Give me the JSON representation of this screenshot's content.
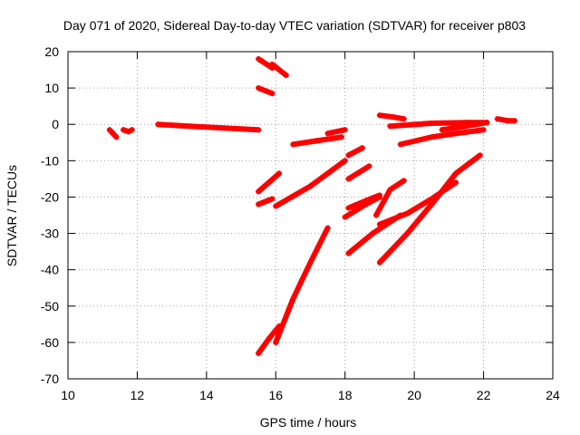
{
  "chart_data": {
    "type": "scatter",
    "title": "Day 071 of 2020, Sidereal Day-to-day VTEC variation (SDTVAR) for receiver p803",
    "xlabel": "GPS time / hours",
    "ylabel": "SDTVAR / TECUs",
    "xlim": [
      10,
      24
    ],
    "ylim": [
      -70,
      20
    ],
    "xticks": [
      "10",
      "12",
      "14",
      "16",
      "18",
      "20",
      "22",
      "24"
    ],
    "yticks": [
      "20",
      "10",
      "0",
      "-10",
      "-20",
      "-30",
      "-40",
      "-50",
      "-60",
      "-70"
    ],
    "xtick_values": [
      10,
      12,
      14,
      16,
      18,
      20,
      22,
      24
    ],
    "ytick_values": [
      20,
      10,
      0,
      -10,
      -20,
      -30,
      -40,
      -50,
      -60,
      -70
    ],
    "grid": true,
    "marker_color": "#ff0000",
    "series": [
      {
        "x": [
          11.2,
          11.3,
          11.4
        ],
        "y": [
          -1.5,
          -2.5,
          -3.5
        ]
      },
      {
        "x": [
          11.6,
          11.75,
          11.85
        ],
        "y": [
          -1.5,
          -2.0,
          -1.5
        ]
      },
      {
        "x": [
          12.6,
          13.5,
          14.5,
          15.5
        ],
        "y": [
          0.0,
          -0.5,
          -1.0,
          -1.5
        ]
      },
      {
        "x": [
          15.5,
          15.9
        ],
        "y": [
          18.0,
          15.5
        ]
      },
      {
        "x": [
          15.9,
          16.3
        ],
        "y": [
          16.5,
          13.5
        ]
      },
      {
        "x": [
          15.5,
          15.9
        ],
        "y": [
          10.0,
          8.5
        ]
      },
      {
        "x": [
          16.5,
          17.2,
          17.9
        ],
        "y": [
          -5.5,
          -4.5,
          -3.5
        ]
      },
      {
        "x": [
          17.5,
          18.0
        ],
        "y": [
          -2.5,
          -1.5
        ]
      },
      {
        "x": [
          15.5,
          15.8,
          16.1
        ],
        "y": [
          -18.5,
          -16.0,
          -13.5
        ]
      },
      {
        "x": [
          15.5,
          15.9
        ],
        "y": [
          -22.0,
          -20.5
        ]
      },
      {
        "x": [
          16.0,
          17.0,
          18.0
        ],
        "y": [
          -22.5,
          -17.0,
          -10.0
        ]
      },
      {
        "x": [
          18.1,
          18.5
        ],
        "y": [
          -8.5,
          -6.5
        ]
      },
      {
        "x": [
          18.1,
          18.7
        ],
        "y": [
          -15.0,
          -11.5
        ]
      },
      {
        "x": [
          18.0,
          18.6,
          19.0
        ],
        "y": [
          -25.5,
          -22.0,
          -20.0
        ]
      },
      {
        "x": [
          18.1,
          18.6,
          19.0
        ],
        "y": [
          -23.0,
          -21.0,
          -19.5
        ]
      },
      {
        "x": [
          18.1,
          18.8,
          19.6
        ],
        "y": [
          -35.5,
          -30.0,
          -25.0
        ]
      },
      {
        "x": [
          15.5,
          15.8,
          16.1
        ],
        "y": [
          -63.0,
          -59.0,
          -55.5
        ]
      },
      {
        "x": [
          16.0,
          16.5,
          17.0,
          17.5
        ],
        "y": [
          -60.0,
          -48.0,
          -38.0,
          -28.5
        ]
      },
      {
        "x": [
          18.9,
          19.3,
          19.7
        ],
        "y": [
          -25.0,
          -18.0,
          -15.5
        ]
      },
      {
        "x": [
          19.0,
          19.8,
          20.5,
          21.2
        ],
        "y": [
          -27.5,
          -24.5,
          -20.5,
          -16.0
        ]
      },
      {
        "x": [
          19.0,
          19.8,
          20.5,
          21.2,
          21.9
        ],
        "y": [
          -38.0,
          -30.0,
          -22.0,
          -13.5,
          -8.5
        ]
      },
      {
        "x": [
          19.0,
          19.4,
          19.7
        ],
        "y": [
          2.5,
          2.0,
          1.5
        ]
      },
      {
        "x": [
          19.3,
          20.5,
          21.5,
          22.1
        ],
        "y": [
          -0.5,
          0.3,
          0.5,
          0.5
        ]
      },
      {
        "x": [
          19.6,
          20.5,
          21.2,
          22.0
        ],
        "y": [
          -5.5,
          -3.5,
          -2.5,
          -1.5
        ]
      },
      {
        "x": [
          20.8,
          21.5,
          22.1
        ],
        "y": [
          -1.5,
          -0.5,
          0.5
        ]
      },
      {
        "x": [
          22.4,
          22.7,
          22.9
        ],
        "y": [
          1.5,
          1.0,
          1.0
        ]
      }
    ]
  }
}
